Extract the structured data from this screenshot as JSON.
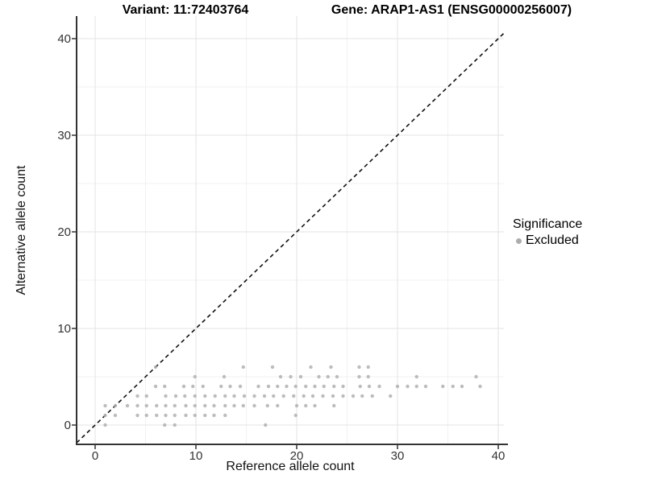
{
  "figure": {
    "title_left": "Variant: 11:72403764",
    "title_right": "Gene: ARAP1-AS1 (ENSG00000256007)",
    "background": "#ffffff"
  },
  "chart_data": {
    "type": "scatter",
    "title": "Variant: 11:72403764",
    "subtitle": "Gene: ARAP1-AS1 (ENSG00000256007)",
    "xlabel": "Reference allele count",
    "ylabel": "Alternative allele count",
    "xlim": [
      -1.8,
      40.6
    ],
    "ylim": [
      -2,
      42.3
    ],
    "xticks": [
      0,
      10,
      20,
      30,
      40
    ],
    "yticks": [
      0,
      10,
      20,
      30,
      40
    ],
    "grid": {
      "on": true,
      "major_color": "#e3e3e3",
      "minor_color": "#f1f1f1",
      "minor_x": [
        5,
        15,
        25,
        35
      ],
      "minor_y": [
        5,
        15,
        25,
        35
      ]
    },
    "axis_color": "#333333",
    "tick_label_color": "#333333",
    "reference_line": {
      "type": "identity y = x",
      "style": "dashed",
      "color": "#111111"
    },
    "legend": {
      "title": "Significance",
      "position": "right",
      "entries": [
        {
          "label": "Excluded",
          "color": "#adadad"
        }
      ]
    },
    "series": [
      {
        "name": "Excluded",
        "color": "#b0b0b0",
        "points": [
          [
            1,
            0
          ],
          [
            6.9,
            0
          ],
          [
            7.9,
            0
          ],
          [
            16.9,
            0
          ],
          [
            1,
            1
          ],
          [
            2,
            1
          ],
          [
            4.2,
            1
          ],
          [
            5.1,
            1
          ],
          [
            6.1,
            1
          ],
          [
            7,
            1
          ],
          [
            7.9,
            1
          ],
          [
            9,
            1
          ],
          [
            9.9,
            1
          ],
          [
            10.9,
            1
          ],
          [
            11.8,
            1
          ],
          [
            12.9,
            1
          ],
          [
            19.9,
            1
          ],
          [
            1,
            2
          ],
          [
            2,
            2
          ],
          [
            3.2,
            2
          ],
          [
            4.2,
            2
          ],
          [
            5.1,
            2
          ],
          [
            6.1,
            2
          ],
          [
            7,
            2
          ],
          [
            7.9,
            2
          ],
          [
            9,
            2
          ],
          [
            9.9,
            2
          ],
          [
            10.9,
            2
          ],
          [
            11.8,
            2
          ],
          [
            12.9,
            2
          ],
          [
            13.8,
            2
          ],
          [
            14.7,
            2
          ],
          [
            15.8,
            2
          ],
          [
            17.1,
            2
          ],
          [
            18.1,
            2
          ],
          [
            20,
            2
          ],
          [
            20.9,
            2
          ],
          [
            21.8,
            2
          ],
          [
            23.7,
            2
          ],
          [
            4.2,
            3
          ],
          [
            5.1,
            3
          ],
          [
            7,
            3
          ],
          [
            8,
            3
          ],
          [
            8.9,
            3
          ],
          [
            9.9,
            3
          ],
          [
            10.9,
            3
          ],
          [
            11.9,
            3
          ],
          [
            12.9,
            3
          ],
          [
            13.8,
            3
          ],
          [
            14.8,
            3
          ],
          [
            15.8,
            3
          ],
          [
            16.8,
            3
          ],
          [
            17.7,
            3
          ],
          [
            18.7,
            3
          ],
          [
            19.7,
            3
          ],
          [
            20.7,
            3
          ],
          [
            21.6,
            3
          ],
          [
            22.6,
            3
          ],
          [
            23.6,
            3
          ],
          [
            24.6,
            3
          ],
          [
            25.6,
            3
          ],
          [
            26.5,
            3
          ],
          [
            27.5,
            3
          ],
          [
            29.3,
            3
          ],
          [
            6,
            4
          ],
          [
            6.9,
            4
          ],
          [
            8.8,
            4
          ],
          [
            9.7,
            4
          ],
          [
            10.7,
            4
          ],
          [
            12.5,
            4
          ],
          [
            13.4,
            4
          ],
          [
            14.4,
            4
          ],
          [
            16.2,
            4
          ],
          [
            17.2,
            4
          ],
          [
            18.1,
            4
          ],
          [
            19,
            4
          ],
          [
            19.9,
            4
          ],
          [
            20.9,
            4
          ],
          [
            21.8,
            4
          ],
          [
            22.7,
            4
          ],
          [
            23.7,
            4
          ],
          [
            24.6,
            4
          ],
          [
            26.3,
            4
          ],
          [
            27.2,
            4
          ],
          [
            28.2,
            4
          ],
          [
            30,
            4
          ],
          [
            31,
            4
          ],
          [
            31.9,
            4
          ],
          [
            32.8,
            4
          ],
          [
            34.5,
            4
          ],
          [
            35.5,
            4
          ],
          [
            36.4,
            4
          ],
          [
            38.2,
            4
          ],
          [
            9.9,
            5
          ],
          [
            12.8,
            5
          ],
          [
            18.4,
            5
          ],
          [
            19.4,
            5
          ],
          [
            20.4,
            5
          ],
          [
            22.2,
            5
          ],
          [
            23.1,
            5
          ],
          [
            24,
            5
          ],
          [
            26.2,
            5
          ],
          [
            27.1,
            5
          ],
          [
            31.9,
            5
          ],
          [
            37.8,
            5
          ],
          [
            6,
            6
          ],
          [
            14.7,
            6
          ],
          [
            17.6,
            6
          ],
          [
            21.4,
            6
          ],
          [
            23.4,
            6
          ],
          [
            26.2,
            6
          ],
          [
            27.1,
            6
          ]
        ]
      }
    ]
  }
}
